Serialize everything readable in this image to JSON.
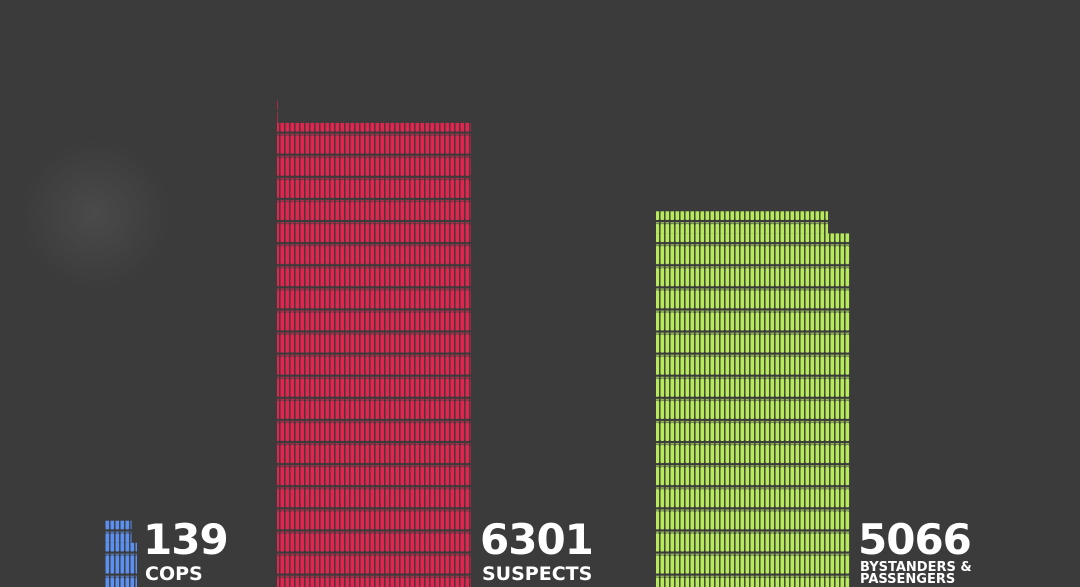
{
  "chart_data": {
    "type": "pictogram",
    "categories": [
      "COPS",
      "SUSPECTS",
      "BYSTANDERS & PASSENGERS"
    ],
    "values": [
      139,
      6301,
      5066
    ],
    "colors": [
      "#5b8ff0",
      "#e3244f",
      "#b6ea5a"
    ]
  }
}
